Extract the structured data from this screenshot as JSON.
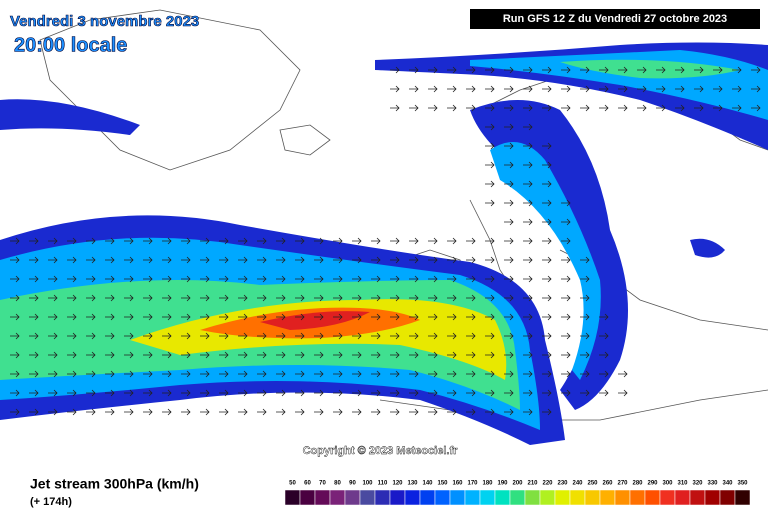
{
  "header": {
    "date": "Vendredi 3 novembre 2023",
    "time": "20:00 locale",
    "run": "Run GFS 12 Z du Vendredi 27 octobre 2023"
  },
  "copyright": "Copyright © 2023 Meteociel.fr",
  "footer": {
    "title": "Jet stream 300hPa (km/h)",
    "lead": "(+ 174h)"
  },
  "legend": {
    "labels": [
      50,
      60,
      70,
      80,
      90,
      100,
      110,
      120,
      130,
      140,
      150,
      160,
      170,
      180,
      190,
      200,
      210,
      220,
      230,
      240,
      250,
      260,
      270,
      280,
      290,
      300,
      310,
      320,
      330,
      340,
      350
    ],
    "colors": [
      "#2a0028",
      "#4a0040",
      "#640a58",
      "#7a2278",
      "#6e3a8c",
      "#4a4aa0",
      "#2c2cb4",
      "#1a1ac8",
      "#0a22e0",
      "#0040f0",
      "#0062ff",
      "#0090ff",
      "#00b2ff",
      "#00d2f0",
      "#00e2c0",
      "#30e080",
      "#80e040",
      "#b0f020",
      "#e0f000",
      "#f0e000",
      "#f8c800",
      "#ffb000",
      "#ff9000",
      "#ff7000",
      "#ff5000",
      "#f03020",
      "#e02020",
      "#c01010",
      "#a00000",
      "#800000",
      "#300000"
    ]
  }
}
